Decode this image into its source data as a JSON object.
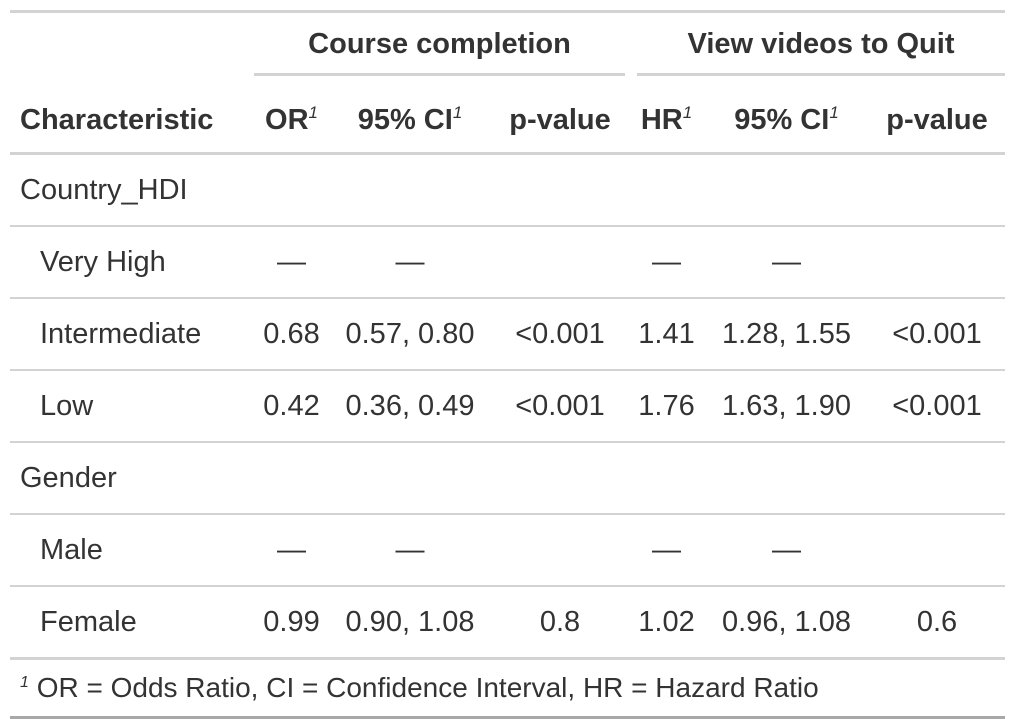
{
  "spanners": {
    "course_completion": "Course completion",
    "view_videos": "View videos to Quit"
  },
  "columns": {
    "characteristic": "Characteristic",
    "or": "OR",
    "ci1": "95% CI",
    "p1": "p-value",
    "hr": "HR",
    "ci2": "95% CI",
    "p2": "p-value",
    "footnote_marker": "1"
  },
  "rows": [
    {
      "label": "Country_HDI",
      "indent": false,
      "or": "",
      "ci1": "",
      "p1": "",
      "hr": "",
      "ci2": "",
      "p2": ""
    },
    {
      "label": "Very High",
      "indent": true,
      "or": "—",
      "ci1": "—",
      "p1": "",
      "hr": "—",
      "ci2": "—",
      "p2": ""
    },
    {
      "label": "Intermediate",
      "indent": true,
      "or": "0.68",
      "ci1": "0.57, 0.80",
      "p1": "<0.001",
      "hr": "1.41",
      "ci2": "1.28, 1.55",
      "p2": "<0.001"
    },
    {
      "label": "Low",
      "indent": true,
      "or": "0.42",
      "ci1": "0.36, 0.49",
      "p1": "<0.001",
      "hr": "1.76",
      "ci2": "1.63, 1.90",
      "p2": "<0.001"
    },
    {
      "label": "Gender",
      "indent": false,
      "or": "",
      "ci1": "",
      "p1": "",
      "hr": "",
      "ci2": "",
      "p2": ""
    },
    {
      "label": "Male",
      "indent": true,
      "or": "—",
      "ci1": "—",
      "p1": "",
      "hr": "—",
      "ci2": "—",
      "p2": ""
    },
    {
      "label": "Female",
      "indent": true,
      "or": "0.99",
      "ci1": "0.90, 1.08",
      "p1": "0.8",
      "hr": "1.02",
      "ci2": "0.96, 1.08",
      "p2": "0.6"
    }
  ],
  "footnote": {
    "marker": "1",
    "text": "OR = Odds Ratio, CI = Confidence Interval, HR = Hazard Ratio"
  }
}
